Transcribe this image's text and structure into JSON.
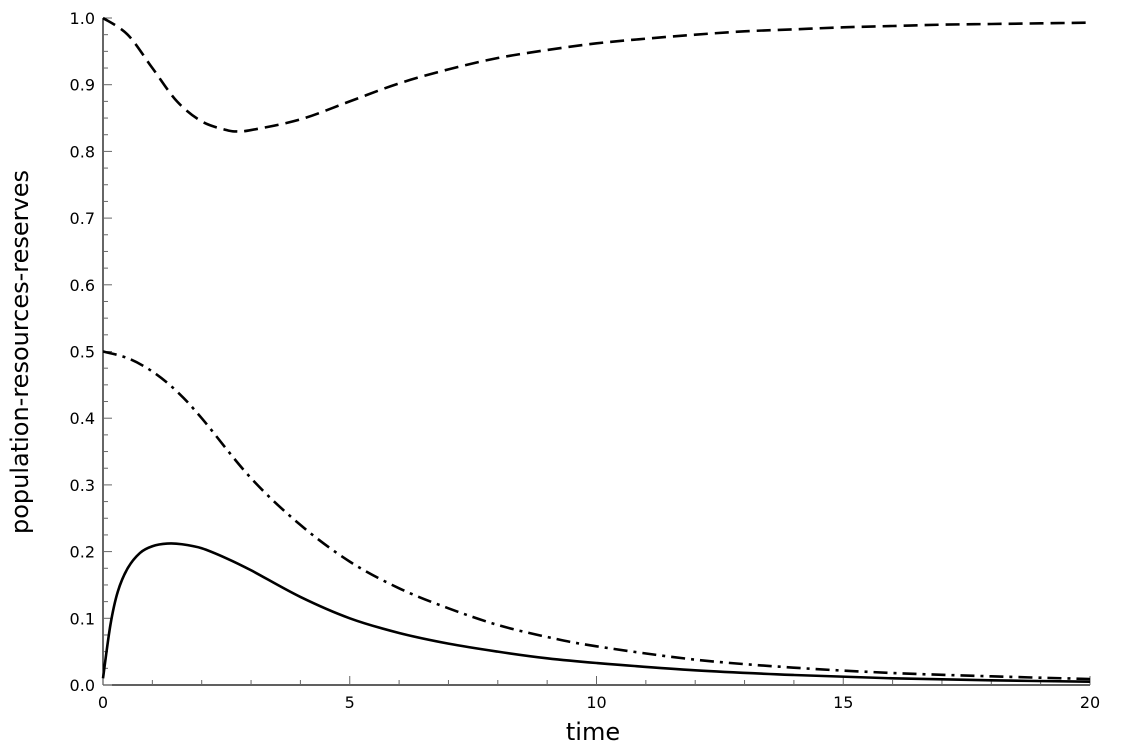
{
  "chart_data": {
    "type": "line",
    "title": "",
    "xlabel": "time",
    "ylabel": "population-resources-reserves",
    "xlim": [
      0,
      20
    ],
    "ylim": [
      0,
      1.0
    ],
    "x_ticks": [
      0,
      5,
      10,
      15,
      20
    ],
    "x_tick_labels": [
      "0",
      "5",
      "10",
      "15",
      "20"
    ],
    "y_ticks": [
      0.0,
      0.1,
      0.2,
      0.3,
      0.4,
      0.5,
      0.6,
      0.7,
      0.8,
      0.9,
      1.0
    ],
    "y_tick_labels": [
      "0.0",
      "0.1",
      "0.2",
      "0.3",
      "0.4",
      "0.5",
      "0.6",
      "0.7",
      "0.8",
      "0.9",
      "1.0"
    ],
    "grid": false,
    "legend": "none",
    "series": [
      {
        "style": "dashed",
        "color": "#000000",
        "x": [
          0,
          0.5,
          1,
          1.5,
          2,
          2.5,
          2.7,
          3,
          4,
          5,
          6,
          7,
          8,
          9,
          10,
          11,
          12,
          13,
          14,
          15,
          16,
          17,
          18,
          19,
          20
        ],
        "y": [
          1.0,
          0.975,
          0.925,
          0.875,
          0.845,
          0.832,
          0.83,
          0.832,
          0.848,
          0.875,
          0.902,
          0.923,
          0.94,
          0.952,
          0.962,
          0.969,
          0.975,
          0.98,
          0.983,
          0.986,
          0.988,
          0.99,
          0.991,
          0.992,
          0.993
        ]
      },
      {
        "style": "dash-dot",
        "color": "#000000",
        "x": [
          0,
          0.5,
          1,
          1.5,
          2,
          3,
          4,
          5,
          6,
          7,
          8,
          9,
          10,
          12,
          14,
          16,
          18,
          20
        ],
        "y": [
          0.5,
          0.49,
          0.47,
          0.44,
          0.4,
          0.31,
          0.24,
          0.185,
          0.145,
          0.115,
          0.09,
          0.072,
          0.058,
          0.038,
          0.026,
          0.018,
          0.013,
          0.009
        ]
      },
      {
        "style": "solid",
        "color": "#000000",
        "x": [
          0,
          0.15,
          0.3,
          0.5,
          0.75,
          1,
          1.3,
          1.6,
          2,
          2.5,
          3,
          4,
          5,
          6,
          7,
          8,
          9,
          10,
          12,
          14,
          16,
          18,
          20
        ],
        "y": [
          0.01,
          0.09,
          0.14,
          0.175,
          0.198,
          0.208,
          0.212,
          0.211,
          0.205,
          0.19,
          0.172,
          0.132,
          0.1,
          0.078,
          0.062,
          0.05,
          0.04,
          0.033,
          0.022,
          0.015,
          0.01,
          0.007,
          0.005
        ]
      }
    ]
  }
}
